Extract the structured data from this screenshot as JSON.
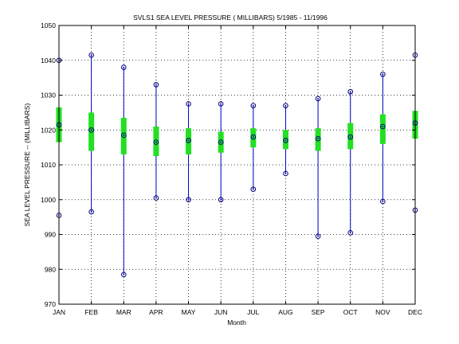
{
  "chart_data": {
    "type": "box",
    "title": "SVLS1  SEA LEVEL PRESSURE ( MILLIBARS) 5/1985 - 11/1996",
    "xlabel": "Month",
    "ylabel": "SEA LEVEL PRESSURE -- (MILLIBARS)",
    "ylim": [
      970,
      1050
    ],
    "yticks": [
      970,
      980,
      990,
      1000,
      1010,
      1020,
      1030,
      1040,
      1050
    ],
    "grid": true,
    "categories": [
      "JAN",
      "FEB",
      "MAR",
      "APR",
      "MAY",
      "JUN",
      "JUL",
      "AUG",
      "SEP",
      "OCT",
      "NOV",
      "DEC"
    ],
    "colors": {
      "range": "#0000c8",
      "box": "#22e022",
      "marker": "#000080"
    },
    "series": [
      {
        "month": "JAN",
        "min": 995.5,
        "q1": 1016.5,
        "mean": 1021.5,
        "q3": 1026.5,
        "max": 1040.0
      },
      {
        "month": "FEB",
        "min": 996.5,
        "q1": 1014.0,
        "mean": 1020.0,
        "q3": 1025.0,
        "max": 1041.5
      },
      {
        "month": "MAR",
        "min": 978.5,
        "q1": 1013.0,
        "mean": 1018.5,
        "q3": 1023.5,
        "max": 1038.0
      },
      {
        "month": "APR",
        "min": 1000.5,
        "q1": 1012.5,
        "mean": 1016.5,
        "q3": 1021.0,
        "max": 1033.0
      },
      {
        "month": "MAY",
        "min": 1000.0,
        "q1": 1013.0,
        "mean": 1017.0,
        "q3": 1020.5,
        "max": 1027.5
      },
      {
        "month": "JUN",
        "min": 1000.0,
        "q1": 1013.5,
        "mean": 1016.5,
        "q3": 1019.5,
        "max": 1027.5
      },
      {
        "month": "JUL",
        "min": 1003.0,
        "q1": 1015.0,
        "mean": 1018.0,
        "q3": 1020.5,
        "max": 1027.0
      },
      {
        "month": "AUG",
        "min": 1007.5,
        "q1": 1014.5,
        "mean": 1017.0,
        "q3": 1020.0,
        "max": 1027.0
      },
      {
        "month": "SEP",
        "min": 989.5,
        "q1": 1014.0,
        "mean": 1017.5,
        "q3": 1020.5,
        "max": 1029.0
      },
      {
        "month": "OCT",
        "min": 990.5,
        "q1": 1014.5,
        "mean": 1018.0,
        "q3": 1022.0,
        "max": 1031.0
      },
      {
        "month": "NOV",
        "min": 999.5,
        "q1": 1016.0,
        "mean": 1021.0,
        "q3": 1024.5,
        "max": 1036.0
      },
      {
        "month": "DEC",
        "min": 997.0,
        "q1": 1017.5,
        "mean": 1022.0,
        "q3": 1025.5,
        "max": 1041.5
      }
    ]
  }
}
